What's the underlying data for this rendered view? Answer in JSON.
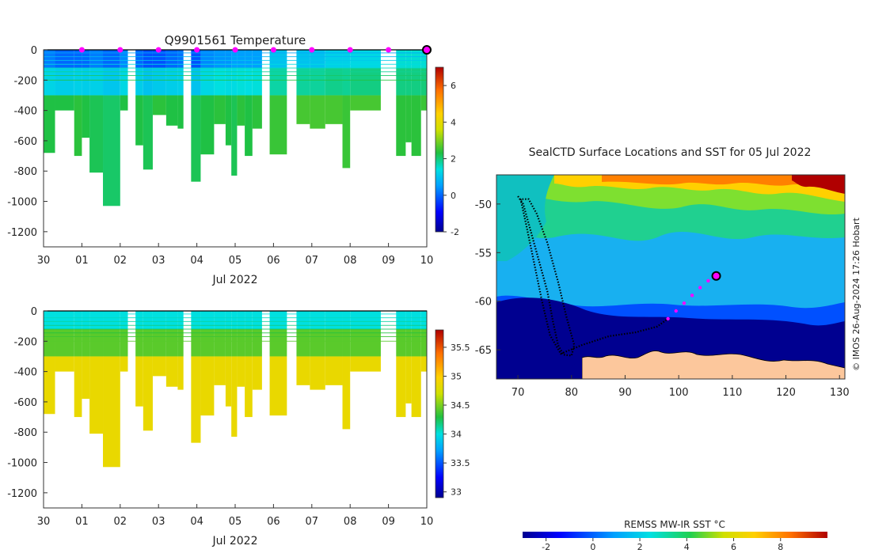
{
  "chart_data": [
    {
      "type": "heatmap",
      "panel": "temperature-section",
      "title": "Q9901561  Temperature",
      "xlabel": "Jul 2022",
      "x_ticks": [
        "30",
        "01",
        "02",
        "03",
        "04",
        "05",
        "06",
        "07",
        "08",
        "09",
        "10"
      ],
      "x_range_days": [
        0,
        10
      ],
      "ylim": [
        -1300,
        0
      ],
      "y_ticks": [
        0,
        -200,
        -400,
        -600,
        -800,
        -1000,
        -1200
      ],
      "colorbar": {
        "min": -2,
        "max": 7,
        "ticks": [
          -2,
          0,
          2,
          4,
          6
        ]
      },
      "surface_marker_days": [
        1.0,
        2.0,
        3.0,
        4.0,
        5.0,
        6.0,
        7.0,
        8.0,
        9.0
      ],
      "last_position_day": 10.0,
      "profiles": [
        {
          "t0": 0.0,
          "t1": 0.3,
          "max_depth": 680,
          "surface_value": 0.2,
          "deep_value": 2.3
        },
        {
          "t0": 0.3,
          "t1": 0.8,
          "max_depth": 400,
          "surface_value": 0.0,
          "deep_value": 2.3
        },
        {
          "t0": 0.8,
          "t1": 1.0,
          "max_depth": 700,
          "surface_value": 0.0,
          "deep_value": 2.4
        },
        {
          "t0": 1.0,
          "t1": 1.2,
          "max_depth": 580,
          "surface_value": 0.0,
          "deep_value": 2.3
        },
        {
          "t0": 1.2,
          "t1": 1.55,
          "max_depth": 810,
          "surface_value": 0.2,
          "deep_value": 2.2
        },
        {
          "t0": 1.55,
          "t1": 2.0,
          "max_depth": 1030,
          "surface_value": 0.0,
          "deep_value": 2.1
        },
        {
          "t0": 2.0,
          "t1": 2.2,
          "max_depth": 400,
          "surface_value": 0.3,
          "deep_value": 2.3
        },
        {
          "t0": 2.4,
          "t1": 2.6,
          "max_depth": 630,
          "surface_value": 0.0,
          "deep_value": 2.3
        },
        {
          "t0": 2.6,
          "t1": 2.85,
          "max_depth": 790,
          "surface_value": -0.2,
          "deep_value": 2.2
        },
        {
          "t0": 2.85,
          "t1": 3.2,
          "max_depth": 430,
          "surface_value": -0.2,
          "deep_value": 2.4
        },
        {
          "t0": 3.2,
          "t1": 3.5,
          "max_depth": 500,
          "surface_value": 0.0,
          "deep_value": 2.3
        },
        {
          "t0": 3.5,
          "t1": 3.65,
          "max_depth": 520,
          "surface_value": 0.1,
          "deep_value": 2.3
        },
        {
          "t0": 3.85,
          "t1": 4.1,
          "max_depth": 870,
          "surface_value": -0.2,
          "deep_value": 2.2
        },
        {
          "t0": 4.1,
          "t1": 4.45,
          "max_depth": 690,
          "surface_value": 0.3,
          "deep_value": 2.3
        },
        {
          "t0": 4.45,
          "t1": 4.75,
          "max_depth": 490,
          "surface_value": 0.4,
          "deep_value": 2.4
        },
        {
          "t0": 4.75,
          "t1": 4.9,
          "max_depth": 630,
          "surface_value": 0.4,
          "deep_value": 2.3
        },
        {
          "t0": 4.9,
          "t1": 5.05,
          "max_depth": 830,
          "surface_value": 0.5,
          "deep_value": 2.2
        },
        {
          "t0": 5.05,
          "t1": 5.25,
          "max_depth": 500,
          "surface_value": 0.5,
          "deep_value": 2.4
        },
        {
          "t0": 5.25,
          "t1": 5.45,
          "max_depth": 700,
          "surface_value": 0.5,
          "deep_value": 2.3
        },
        {
          "t0": 5.45,
          "t1": 5.7,
          "max_depth": 520,
          "surface_value": 0.5,
          "deep_value": 2.4
        },
        {
          "t0": 5.9,
          "t1": 6.35,
          "max_depth": 690,
          "surface_value": 1.0,
          "deep_value": 2.5
        },
        {
          "t0": 6.6,
          "t1": 6.95,
          "max_depth": 490,
          "surface_value": 1.0,
          "deep_value": 2.6
        },
        {
          "t0": 6.95,
          "t1": 7.35,
          "max_depth": 520,
          "surface_value": 1.0,
          "deep_value": 2.6
        },
        {
          "t0": 7.35,
          "t1": 7.8,
          "max_depth": 490,
          "surface_value": 1.2,
          "deep_value": 2.6
        },
        {
          "t0": 7.8,
          "t1": 8.0,
          "max_depth": 780,
          "surface_value": 1.2,
          "deep_value": 2.5
        },
        {
          "t0": 8.0,
          "t1": 8.8,
          "max_depth": 400,
          "surface_value": 1.3,
          "deep_value": 2.6
        },
        {
          "t0": 9.2,
          "t1": 9.45,
          "max_depth": 700,
          "surface_value": 1.5,
          "deep_value": 2.4
        },
        {
          "t0": 9.45,
          "t1": 9.6,
          "max_depth": 610,
          "surface_value": 1.5,
          "deep_value": 2.4
        },
        {
          "t0": 9.6,
          "t1": 9.85,
          "max_depth": 700,
          "surface_value": 1.5,
          "deep_value": 2.4
        },
        {
          "t0": 9.85,
          "t1": 10.0,
          "max_depth": 400,
          "surface_value": 1.5,
          "deep_value": 2.5
        }
      ]
    },
    {
      "type": "heatmap",
      "panel": "salinity-section",
      "title": "",
      "xlabel": "Jul 2022",
      "x_ticks": [
        "30",
        "01",
        "02",
        "03",
        "04",
        "05",
        "06",
        "07",
        "08",
        "09",
        "10"
      ],
      "x_range_days": [
        0,
        10
      ],
      "ylim": [
        -1300,
        0
      ],
      "y_ticks": [
        0,
        -200,
        -400,
        -600,
        -800,
        -1000,
        -1200
      ],
      "colorbar": {
        "min": 32.9,
        "max": 35.8,
        "ticks": [
          33,
          33.5,
          34,
          34.5,
          35,
          35.5
        ]
      },
      "profiles_like": "temperature-section",
      "surface_value": 34.0,
      "deep_value": 34.85
    },
    {
      "type": "heatmap",
      "panel": "sst-map",
      "title": "SealCTD Surface Locations and SST for 05 Jul 2022",
      "xlim": [
        66,
        131
      ],
      "ylim": [
        -68,
        -47
      ],
      "x_ticks": [
        70,
        80,
        90,
        100,
        110,
        120,
        130
      ],
      "y_ticks": [
        -50,
        -55,
        -60,
        -65
      ],
      "colorbar": {
        "label": "REMSS MW-IR SST °C",
        "min": -3,
        "max": 10,
        "ticks": [
          -2,
          0,
          2,
          4,
          6,
          8
        ]
      },
      "track": [
        [
          70,
          -49.2
        ],
        [
          71,
          -50
        ],
        [
          72.5,
          -53
        ],
        [
          74,
          -56
        ],
        [
          75.5,
          -59
        ],
        [
          76.5,
          -62
        ],
        [
          77.5,
          -64.5
        ],
        [
          78.5,
          -65.5
        ],
        [
          80,
          -65.6
        ],
        [
          80.5,
          -64.5
        ],
        [
          79,
          -61.5
        ],
        [
          77.5,
          -58
        ],
        [
          75.5,
          -54
        ],
        [
          73.5,
          -51
        ],
        [
          72,
          -49.5
        ],
        [
          70.5,
          -49.5
        ],
        [
          71.5,
          -52
        ],
        [
          73,
          -56
        ],
        [
          74.5,
          -60
        ],
        [
          76,
          -63.5
        ],
        [
          78,
          -65.4
        ],
        [
          82,
          -64.5
        ],
        [
          87,
          -63.6
        ],
        [
          92,
          -63.2
        ],
        [
          96,
          -62.6
        ],
        [
          98,
          -61.8
        ]
      ],
      "recent_positions": [
        [
          98,
          -61.8
        ],
        [
          99.5,
          -61
        ],
        [
          101,
          -60.2
        ],
        [
          102.5,
          -59.4
        ],
        [
          104,
          -58.6
        ],
        [
          105.5,
          -57.9
        ]
      ],
      "last_position": [
        107,
        -57.4
      ]
    }
  ],
  "watermark": "© IMOS 26-Aug-2024 17:26 Hobart",
  "colors": {
    "marker": "#ff00ff",
    "land": "#fcc79c",
    "ice": "#000080"
  }
}
